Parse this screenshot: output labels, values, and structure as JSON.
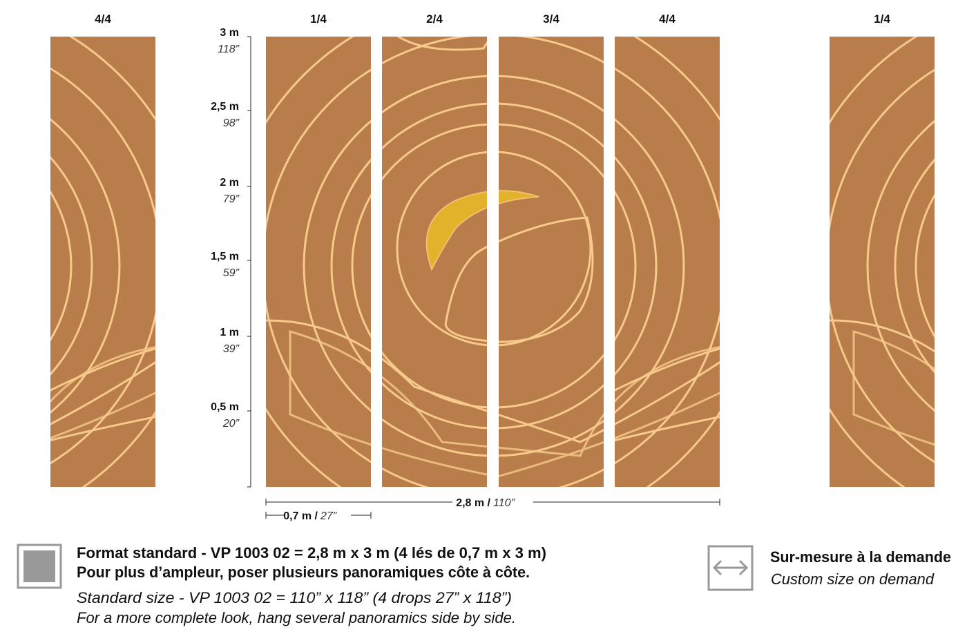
{
  "panel_labels": [
    "4/4",
    "1/4",
    "2/4",
    "3/4",
    "4/4",
    "1/4"
  ],
  "height_scale": [
    {
      "metric": "3 m",
      "imperial": "118”"
    },
    {
      "metric": "2,5 m",
      "imperial": "98”"
    },
    {
      "metric": "2 m",
      "imperial": "79”"
    },
    {
      "metric": "1,5 m",
      "imperial": "59”"
    },
    {
      "metric": "1 m",
      "imperial": "39”"
    },
    {
      "metric": "0,5 m",
      "imperial": "20”"
    }
  ],
  "total_width": {
    "metric": "2,8 m /",
    "imperial": "110”"
  },
  "drop_width": {
    "metric": "0,7 m /",
    "imperial": "27”"
  },
  "standard": {
    "line1": "Format standard - VP 1003 02 = 2,8 m x 3 m (4 lés de 0,7 m x 3 m)",
    "line2": "Pour plus d’ampleur, poser plusieurs panoramiques côte à côte.",
    "line3": "Standard size - VP 1003 02 = 110” x 118” (4 drops 27” x 118”)",
    "line4": "For a more complete look, hang several panoramics side by side."
  },
  "custom": {
    "title": "Sur-mesure à la demande",
    "subtitle": "Custom size on demand"
  }
}
